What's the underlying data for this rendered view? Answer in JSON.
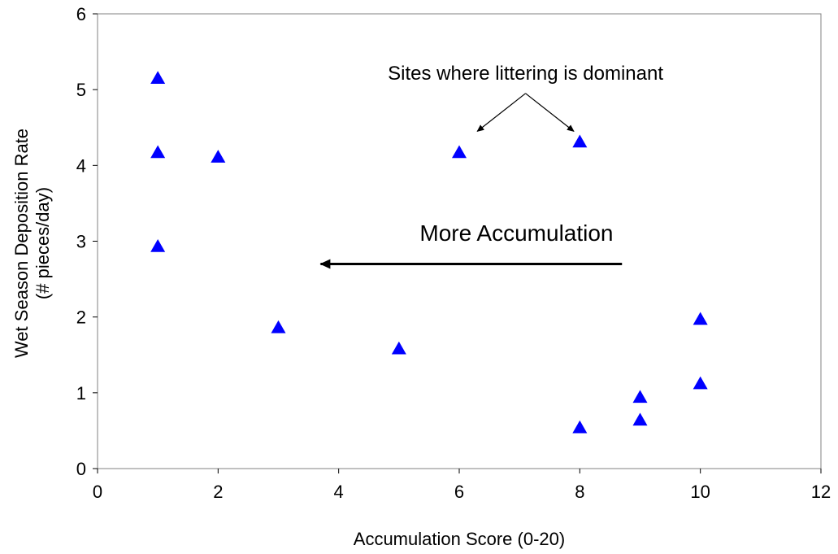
{
  "chart_data": {
    "type": "scatter",
    "xlabel": "Accumulation Score (0-20)",
    "ylabel_lines": [
      "Wet Season Deposition Rate",
      "(# pieces/day)"
    ],
    "xlim": [
      0,
      12
    ],
    "ylim": [
      0,
      6
    ],
    "xticks": [
      0,
      2,
      4,
      6,
      8,
      10,
      12
    ],
    "yticks": [
      0,
      1,
      2,
      3,
      4,
      5,
      6
    ],
    "grid": false,
    "legend": "none",
    "marker": "triangle",
    "series": [
      {
        "color": "#0000ff",
        "points": [
          {
            "x": 1,
            "y": 5.15
          },
          {
            "x": 1,
            "y": 4.17
          },
          {
            "x": 1,
            "y": 2.93
          },
          {
            "x": 2,
            "y": 4.11
          },
          {
            "x": 3,
            "y": 1.86
          },
          {
            "x": 5,
            "y": 1.58
          },
          {
            "x": 6,
            "y": 4.17
          },
          {
            "x": 8,
            "y": 4.31
          },
          {
            "x": 8,
            "y": 0.54
          },
          {
            "x": 9,
            "y": 0.94
          },
          {
            "x": 9,
            "y": 0.64
          },
          {
            "x": 10,
            "y": 1.97
          },
          {
            "x": 10,
            "y": 1.12
          }
        ]
      }
    ],
    "annotations": {
      "littering_label": "Sites where littering is dominant",
      "littering_targets": [
        {
          "x": 6.3,
          "y": 4.45
        },
        {
          "x": 7.9,
          "y": 4.45
        }
      ],
      "littering_origin": {
        "x": 7.1,
        "y": 4.95
      },
      "accumulation_label": "More Accumulation",
      "accumulation_arrow": {
        "from": {
          "x": 8.7,
          "y": 2.7
        },
        "to": {
          "x": 3.7,
          "y": 2.7
        }
      }
    }
  }
}
